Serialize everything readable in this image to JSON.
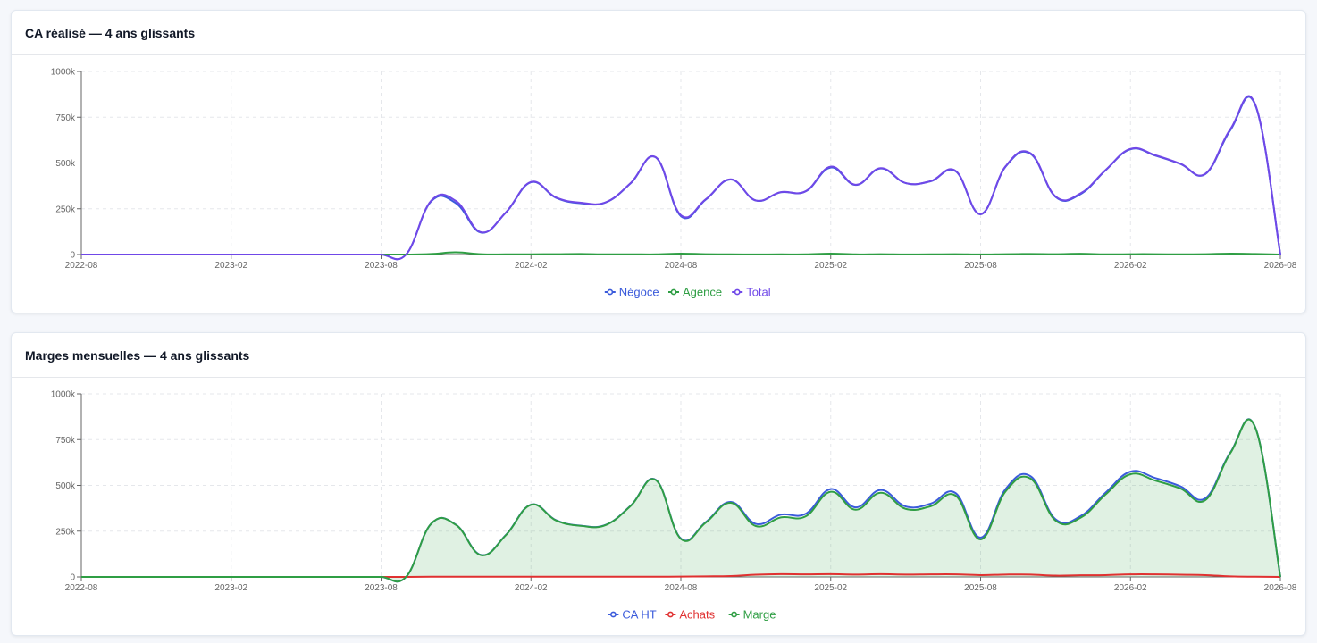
{
  "cards": [
    {
      "title": "CA réalisé — 4 ans glissants",
      "chart_data": {
        "type": "line",
        "title": "CA réalisé — 4 ans glissants",
        "ylim": [
          0,
          1000000
        ],
        "y_ticks": [
          0,
          250000,
          500000,
          750000,
          1000000
        ],
        "y_tick_labels": [
          "0",
          "250k",
          "500k",
          "750k",
          "1000k"
        ],
        "x_tick_labels": [
          "2022-08",
          "2023-02",
          "2023-08",
          "2024-02",
          "2024-08",
          "2025-02",
          "2025-08",
          "2026-02",
          "2026-08"
        ],
        "x": [
          "2022-08",
          "2022-09",
          "2022-10",
          "2022-11",
          "2022-12",
          "2023-01",
          "2023-02",
          "2023-03",
          "2023-04",
          "2023-05",
          "2023-06",
          "2023-07",
          "2023-08",
          "2023-09",
          "2023-10",
          "2023-11",
          "2023-12",
          "2024-01",
          "2024-02",
          "2024-03",
          "2024-04",
          "2024-05",
          "2024-06",
          "2024-07",
          "2024-08",
          "2024-09",
          "2024-10",
          "2024-11",
          "2024-12",
          "2025-01",
          "2025-02",
          "2025-03",
          "2025-04",
          "2025-05",
          "2025-06",
          "2025-07",
          "2025-08",
          "2025-09",
          "2025-10",
          "2025-11",
          "2025-12",
          "2026-01",
          "2026-02",
          "2026-03",
          "2026-04",
          "2026-05",
          "2026-06",
          "2026-07",
          "2026-08"
        ],
        "grid": true,
        "legend_position": "bottom",
        "series": [
          {
            "name": "Négoce",
            "color": "#3b5bdb",
            "fill": false,
            "values": [
              0,
              0,
              0,
              0,
              0,
              0,
              0,
              0,
              0,
              0,
              0,
              0,
              0,
              0,
              290000,
              280000,
              120000,
              230000,
              395000,
              310000,
              280000,
              285000,
              390000,
              530000,
              210000,
              300000,
              410000,
              295000,
              340000,
              345000,
              475000,
              380000,
              470000,
              390000,
              400000,
              455000,
              220000,
              480000,
              550000,
              315000,
              330000,
              460000,
              575000,
              540000,
              495000,
              440000,
              680000,
              815000,
              0
            ]
          },
          {
            "name": "Agence",
            "color": "#2f9e44",
            "fill": false,
            "values": [
              0,
              0,
              0,
              0,
              0,
              0,
              0,
              0,
              0,
              0,
              0,
              0,
              0,
              0,
              3000,
              12000,
              2000,
              1000,
              1500,
              2000,
              3000,
              1000,
              1500,
              1000,
              5000,
              2000,
              1000,
              500,
              1000,
              1000,
              5000,
              1000,
              2000,
              500,
              1000,
              2000,
              500,
              2000,
              3000,
              2000,
              4000,
              1000,
              2000,
              2000,
              1000,
              2000,
              5000,
              3000,
              0
            ]
          },
          {
            "name": "Total",
            "color": "#7048e8",
            "fill": false,
            "values": [
              0,
              0,
              0,
              0,
              0,
              0,
              0,
              0,
              0,
              0,
              0,
              0,
              0,
              0,
              293000,
              292000,
              122000,
              231000,
              396500,
              312000,
              283000,
              286000,
              391500,
              531000,
              215000,
              302000,
              411000,
              295500,
              341000,
              346000,
              480000,
              381000,
              472000,
              390500,
              401000,
              457000,
              220500,
              482000,
              553000,
              317000,
              334000,
              461000,
              577000,
              542000,
              496000,
              442000,
              685000,
              818000,
              0
            ]
          }
        ]
      }
    },
    {
      "title": "Marges mensuelles — 4 ans glissants",
      "chart_data": {
        "type": "area",
        "title": "Marges mensuelles — 4 ans glissants",
        "ylim": [
          0,
          1000000
        ],
        "y_ticks": [
          0,
          250000,
          500000,
          750000,
          1000000
        ],
        "y_tick_labels": [
          "0",
          "250k",
          "500k",
          "750k",
          "1000k"
        ],
        "x_tick_labels": [
          "2022-08",
          "2023-02",
          "2023-08",
          "2024-02",
          "2024-08",
          "2025-02",
          "2025-08",
          "2026-02",
          "2026-08"
        ],
        "x": [
          "2022-08",
          "2022-09",
          "2022-10",
          "2022-11",
          "2022-12",
          "2023-01",
          "2023-02",
          "2023-03",
          "2023-04",
          "2023-05",
          "2023-06",
          "2023-07",
          "2023-08",
          "2023-09",
          "2023-10",
          "2023-11",
          "2023-12",
          "2024-01",
          "2024-02",
          "2024-03",
          "2024-04",
          "2024-05",
          "2024-06",
          "2024-07",
          "2024-08",
          "2024-09",
          "2024-10",
          "2024-11",
          "2024-12",
          "2025-01",
          "2025-02",
          "2025-03",
          "2025-04",
          "2025-05",
          "2025-06",
          "2025-07",
          "2025-08",
          "2025-09",
          "2025-10",
          "2025-11",
          "2025-12",
          "2026-01",
          "2026-02",
          "2026-03",
          "2026-04",
          "2026-05",
          "2026-06",
          "2026-07",
          "2026-08"
        ],
        "grid": true,
        "legend_position": "bottom",
        "series": [
          {
            "name": "CA HT",
            "color": "#3b5bdb",
            "fill": false,
            "values": [
              0,
              0,
              0,
              0,
              0,
              0,
              0,
              0,
              0,
              0,
              0,
              0,
              0,
              0,
              290000,
              285000,
              120000,
              230000,
              395000,
              310000,
              280000,
              285000,
              390000,
              530000,
              210000,
              300000,
              410000,
              290000,
              340000,
              345000,
              480000,
              380000,
              475000,
              385000,
              400000,
              458000,
              215000,
              480000,
              550000,
              315000,
              332000,
              460000,
              575000,
              540000,
              495000,
              430000,
              680000,
              815000,
              0
            ]
          },
          {
            "name": "Achats",
            "color": "#e03131",
            "fill": false,
            "values": [
              0,
              0,
              0,
              0,
              0,
              0,
              0,
              0,
              0,
              0,
              0,
              0,
              0,
              0,
              1000,
              1000,
              1000,
              1000,
              1000,
              1000,
              1000,
              1000,
              1000,
              1000,
              2000,
              3000,
              5000,
              12000,
              15000,
              14000,
              15000,
              13000,
              15000,
              13000,
              14000,
              14000,
              10000,
              13000,
              13000,
              7000,
              9000,
              10000,
              14000,
              14000,
              12000,
              10000,
              3000,
              1000,
              0
            ]
          },
          {
            "name": "Marge",
            "color": "#2f9e44",
            "fill": true,
            "values": [
              0,
              0,
              0,
              0,
              0,
              0,
              0,
              0,
              0,
              0,
              0,
              0,
              0,
              0,
              290000,
              284000,
              119000,
              229000,
              394000,
              309000,
              279000,
              284000,
              389000,
              529000,
              208000,
              297000,
              405000,
              278000,
              325000,
              331000,
              465000,
              367000,
              460000,
              372000,
              386000,
              444000,
              205000,
              467000,
              537000,
              308000,
              323000,
              450000,
              561000,
              526000,
              483000,
              420000,
              677000,
              814000,
              0
            ]
          }
        ]
      }
    }
  ]
}
